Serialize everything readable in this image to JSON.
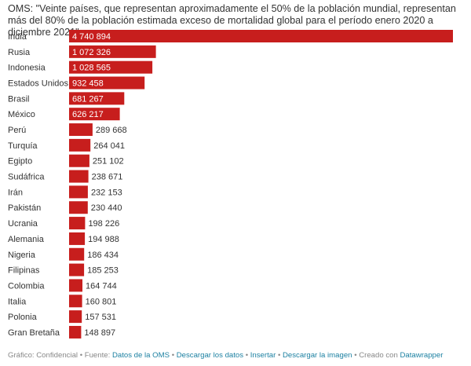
{
  "chart_data": {
    "type": "bar",
    "orientation": "horizontal",
    "title": "OMS: \"Veinte países, que representan aproximadamente el 50% de la población mundial, representan más del 80% de la población estimada exceso de mortalidad global para el período enero 2020 a diciembre 2021\".",
    "categories": [
      "India",
      "Rusia",
      "Indonesia",
      "Estados Unidos",
      "Brasil",
      "México",
      "Perú",
      "Turquía",
      "Egipto",
      "Sudáfrica",
      "Irán",
      "Pakistán",
      "Ucrania",
      "Alemania",
      "Nigeria",
      "Filipinas",
      "Colombia",
      "Italia",
      "Polonia",
      "Gran Bretaña"
    ],
    "values": [
      4740894,
      1072326,
      1028565,
      932458,
      681267,
      626217,
      289668,
      264041,
      251102,
      238671,
      232153,
      230440,
      198226,
      194988,
      186434,
      185253,
      164744,
      160801,
      157531,
      148897
    ],
    "value_labels": [
      "4 740 894",
      "1 072 326",
      "1 028 565",
      "932 458",
      "681 267",
      "626 217",
      "289 668",
      "264 041",
      "251 102",
      "238 671",
      "232 153",
      "230 440",
      "198 226",
      "194 988",
      "186 434",
      "185 253",
      "164 744",
      "160 801",
      "157 531",
      "148 897"
    ],
    "xlim": [
      0,
      4740894
    ],
    "grid": false,
    "legend": "none",
    "bar_color": "#c71e1d"
  },
  "footer": {
    "prefix": "Gráfico: Confidencial • Fuente: ",
    "source_link": "Datos de la OMS",
    "download_link": "Descargar los datos",
    "embed_link": "Insertar",
    "image_link": "Descargar la imagen",
    "created_text": "Creado con",
    "tool_link": "Datawrapper",
    "separator": "•"
  }
}
